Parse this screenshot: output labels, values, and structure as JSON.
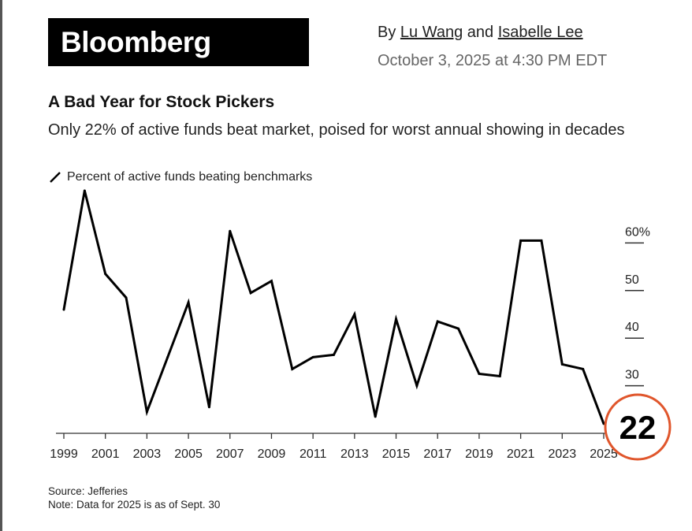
{
  "header": {
    "logo": "Bloomberg",
    "by": "By",
    "author1": "Lu Wang",
    "and": "and",
    "author2": "Isabelle Lee",
    "date": "October 3, 2025 at 4:30 PM EDT"
  },
  "title": "A Bad Year for Stock Pickers",
  "subtitle": "Only 22% of active funds beat market, poised for worst annual showing in decades",
  "source": "Source: Jefferies",
  "note": "Note: Data for 2025 is as of Sept. 30",
  "chart_data": {
    "type": "line",
    "title": "A Bad Year for Stock Pickers",
    "legend": "Percent of active funds beating benchmarks",
    "x": [
      1999,
      2000,
      2001,
      2002,
      2003,
      2004,
      2005,
      2006,
      2007,
      2008,
      2009,
      2010,
      2011,
      2012,
      2013,
      2014,
      2015,
      2016,
      2017,
      2018,
      2019,
      2020,
      2021,
      2022,
      2023,
      2024,
      2025
    ],
    "values": [
      46,
      71,
      53.5,
      48.5,
      24.5,
      36,
      47.5,
      25.5,
      62.5,
      49.5,
      52,
      33.5,
      36,
      36.5,
      45,
      23.5,
      44,
      30,
      43.5,
      42,
      32.5,
      32,
      60.5,
      60.5,
      34.5,
      33.5,
      22
    ],
    "xticks": [
      "1999",
      "2001",
      "2003",
      "2005",
      "2007",
      "2009",
      "2011",
      "2013",
      "2015",
      "2017",
      "2019",
      "2021",
      "2023",
      "2025"
    ],
    "yticks": [
      {
        "v": 60,
        "label": "60%"
      },
      {
        "v": 50,
        "label": "50"
      },
      {
        "v": 40,
        "label": "40"
      },
      {
        "v": 30,
        "label": "30"
      }
    ],
    "ylim": [
      20,
      72
    ],
    "callout": "22",
    "colors": {
      "line": "#000000",
      "callout": "#e0562c"
    }
  }
}
